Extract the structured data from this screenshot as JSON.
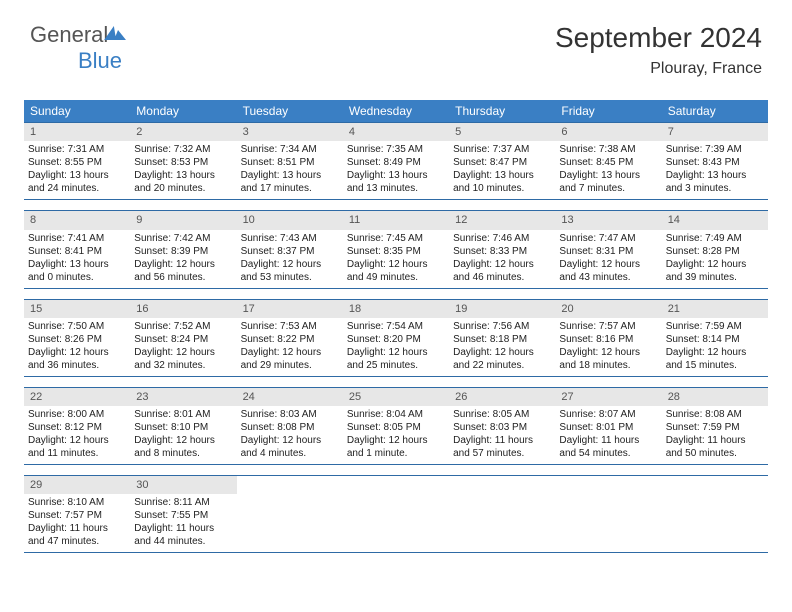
{
  "brand": {
    "part1": "General",
    "part2": "Blue"
  },
  "title": {
    "month_year": "September 2024",
    "location": "Plouray, France"
  },
  "colors": {
    "header_bg": "#3a7fc4",
    "border": "#2e6aa5",
    "daynum_bg": "#e7e7e7",
    "page_bg": "#ffffff"
  },
  "weekday_labels": [
    "Sunday",
    "Monday",
    "Tuesday",
    "Wednesday",
    "Thursday",
    "Friday",
    "Saturday"
  ],
  "days": [
    {
      "n": "1",
      "sunrise": "Sunrise: 7:31 AM",
      "sunset": "Sunset: 8:55 PM",
      "d1": "Daylight: 13 hours",
      "d2": "and 24 minutes."
    },
    {
      "n": "2",
      "sunrise": "Sunrise: 7:32 AM",
      "sunset": "Sunset: 8:53 PM",
      "d1": "Daylight: 13 hours",
      "d2": "and 20 minutes."
    },
    {
      "n": "3",
      "sunrise": "Sunrise: 7:34 AM",
      "sunset": "Sunset: 8:51 PM",
      "d1": "Daylight: 13 hours",
      "d2": "and 17 minutes."
    },
    {
      "n": "4",
      "sunrise": "Sunrise: 7:35 AM",
      "sunset": "Sunset: 8:49 PM",
      "d1": "Daylight: 13 hours",
      "d2": "and 13 minutes."
    },
    {
      "n": "5",
      "sunrise": "Sunrise: 7:37 AM",
      "sunset": "Sunset: 8:47 PM",
      "d1": "Daylight: 13 hours",
      "d2": "and 10 minutes."
    },
    {
      "n": "6",
      "sunrise": "Sunrise: 7:38 AM",
      "sunset": "Sunset: 8:45 PM",
      "d1": "Daylight: 13 hours",
      "d2": "and 7 minutes."
    },
    {
      "n": "7",
      "sunrise": "Sunrise: 7:39 AM",
      "sunset": "Sunset: 8:43 PM",
      "d1": "Daylight: 13 hours",
      "d2": "and 3 minutes."
    },
    {
      "n": "8",
      "sunrise": "Sunrise: 7:41 AM",
      "sunset": "Sunset: 8:41 PM",
      "d1": "Daylight: 13 hours",
      "d2": "and 0 minutes."
    },
    {
      "n": "9",
      "sunrise": "Sunrise: 7:42 AM",
      "sunset": "Sunset: 8:39 PM",
      "d1": "Daylight: 12 hours",
      "d2": "and 56 minutes."
    },
    {
      "n": "10",
      "sunrise": "Sunrise: 7:43 AM",
      "sunset": "Sunset: 8:37 PM",
      "d1": "Daylight: 12 hours",
      "d2": "and 53 minutes."
    },
    {
      "n": "11",
      "sunrise": "Sunrise: 7:45 AM",
      "sunset": "Sunset: 8:35 PM",
      "d1": "Daylight: 12 hours",
      "d2": "and 49 minutes."
    },
    {
      "n": "12",
      "sunrise": "Sunrise: 7:46 AM",
      "sunset": "Sunset: 8:33 PM",
      "d1": "Daylight: 12 hours",
      "d2": "and 46 minutes."
    },
    {
      "n": "13",
      "sunrise": "Sunrise: 7:47 AM",
      "sunset": "Sunset: 8:31 PM",
      "d1": "Daylight: 12 hours",
      "d2": "and 43 minutes."
    },
    {
      "n": "14",
      "sunrise": "Sunrise: 7:49 AM",
      "sunset": "Sunset: 8:28 PM",
      "d1": "Daylight: 12 hours",
      "d2": "and 39 minutes."
    },
    {
      "n": "15",
      "sunrise": "Sunrise: 7:50 AM",
      "sunset": "Sunset: 8:26 PM",
      "d1": "Daylight: 12 hours",
      "d2": "and 36 minutes."
    },
    {
      "n": "16",
      "sunrise": "Sunrise: 7:52 AM",
      "sunset": "Sunset: 8:24 PM",
      "d1": "Daylight: 12 hours",
      "d2": "and 32 minutes."
    },
    {
      "n": "17",
      "sunrise": "Sunrise: 7:53 AM",
      "sunset": "Sunset: 8:22 PM",
      "d1": "Daylight: 12 hours",
      "d2": "and 29 minutes."
    },
    {
      "n": "18",
      "sunrise": "Sunrise: 7:54 AM",
      "sunset": "Sunset: 8:20 PM",
      "d1": "Daylight: 12 hours",
      "d2": "and 25 minutes."
    },
    {
      "n": "19",
      "sunrise": "Sunrise: 7:56 AM",
      "sunset": "Sunset: 8:18 PM",
      "d1": "Daylight: 12 hours",
      "d2": "and 22 minutes."
    },
    {
      "n": "20",
      "sunrise": "Sunrise: 7:57 AM",
      "sunset": "Sunset: 8:16 PM",
      "d1": "Daylight: 12 hours",
      "d2": "and 18 minutes."
    },
    {
      "n": "21",
      "sunrise": "Sunrise: 7:59 AM",
      "sunset": "Sunset: 8:14 PM",
      "d1": "Daylight: 12 hours",
      "d2": "and 15 minutes."
    },
    {
      "n": "22",
      "sunrise": "Sunrise: 8:00 AM",
      "sunset": "Sunset: 8:12 PM",
      "d1": "Daylight: 12 hours",
      "d2": "and 11 minutes."
    },
    {
      "n": "23",
      "sunrise": "Sunrise: 8:01 AM",
      "sunset": "Sunset: 8:10 PM",
      "d1": "Daylight: 12 hours",
      "d2": "and 8 minutes."
    },
    {
      "n": "24",
      "sunrise": "Sunrise: 8:03 AM",
      "sunset": "Sunset: 8:08 PM",
      "d1": "Daylight: 12 hours",
      "d2": "and 4 minutes."
    },
    {
      "n": "25",
      "sunrise": "Sunrise: 8:04 AM",
      "sunset": "Sunset: 8:05 PM",
      "d1": "Daylight: 12 hours",
      "d2": "and 1 minute."
    },
    {
      "n": "26",
      "sunrise": "Sunrise: 8:05 AM",
      "sunset": "Sunset: 8:03 PM",
      "d1": "Daylight: 11 hours",
      "d2": "and 57 minutes."
    },
    {
      "n": "27",
      "sunrise": "Sunrise: 8:07 AM",
      "sunset": "Sunset: 8:01 PM",
      "d1": "Daylight: 11 hours",
      "d2": "and 54 minutes."
    },
    {
      "n": "28",
      "sunrise": "Sunrise: 8:08 AM",
      "sunset": "Sunset: 7:59 PM",
      "d1": "Daylight: 11 hours",
      "d2": "and 50 minutes."
    },
    {
      "n": "29",
      "sunrise": "Sunrise: 8:10 AM",
      "sunset": "Sunset: 7:57 PM",
      "d1": "Daylight: 11 hours",
      "d2": "and 47 minutes."
    },
    {
      "n": "30",
      "sunrise": "Sunrise: 8:11 AM",
      "sunset": "Sunset: 7:55 PM",
      "d1": "Daylight: 11 hours",
      "d2": "and 44 minutes."
    }
  ]
}
